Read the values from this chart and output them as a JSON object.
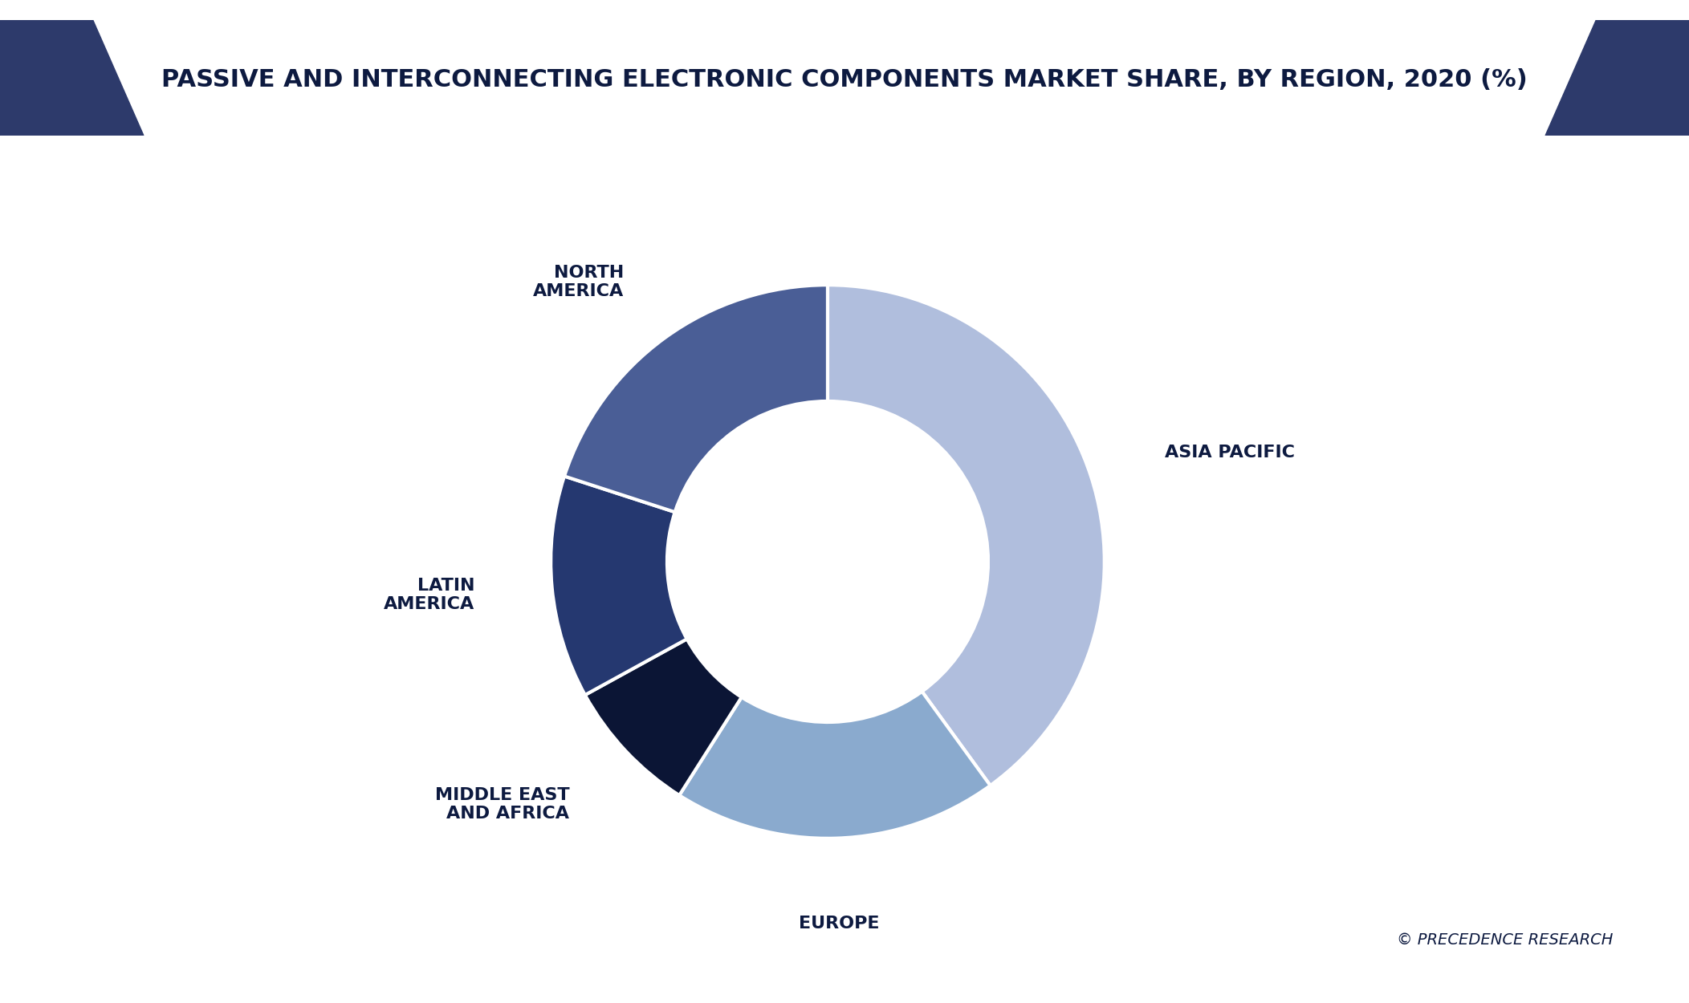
{
  "title": "PASSIVE AND INTERCONNECTING ELECTRONIC COMPONENTS MARKET SHARE, BY REGION, 2020 (%)",
  "segments": [
    {
      "label": "ASIA PACIFIC",
      "value": 40,
      "color": "#b0bedd"
    },
    {
      "label": "EUROPE",
      "value": 19,
      "color": "#8aaace"
    },
    {
      "label": "MIDDLE EAST\nAND AFRICA",
      "value": 8,
      "color": "#0b1535"
    },
    {
      "label": "LATIN\nAMERICA",
      "value": 13,
      "color": "#253870"
    },
    {
      "label": "NORTH\nAMERICA",
      "value": 20,
      "color": "#4a5e96"
    }
  ],
  "background_color": "#ffffff",
  "title_banner_color": "#f5f5f8",
  "title_color": "#0d1a40",
  "label_color": "#0d1a40",
  "corner_triangle_color": "#2d3a6b",
  "watermark": "© PRECEDENCE RESEARCH",
  "start_angle": 90,
  "title_fontsize": 22,
  "label_fontsize": 16,
  "watermark_fontsize": 14
}
